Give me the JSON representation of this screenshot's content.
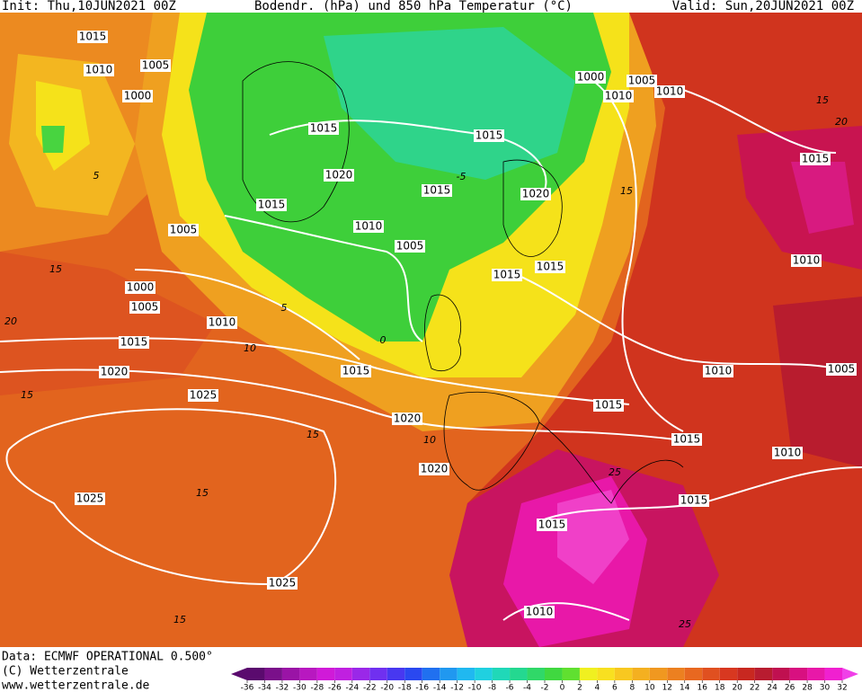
{
  "header": {
    "init": "Init: Thu,10JUN2021 00Z",
    "title": "Bodendr. (hPa) und 850 hPa Temperatur (°C)",
    "valid": "Valid: Sun,20JUN2021 00Z"
  },
  "footer": {
    "data": "Data: ECMWF OPERATIONAL 0.500°",
    "copyright": "(C) Wetterzentrale",
    "url": "www.wetterzentrale.de"
  },
  "map": {
    "isobar_labels": [
      1015,
      1010,
      1005,
      1000,
      1015,
      1015,
      1020,
      1015,
      1020,
      1015,
      1005,
      1010,
      1005,
      1015,
      1015,
      1000,
      1005,
      1010,
      1010,
      1015,
      1010,
      1000,
      1005,
      1010,
      1015,
      1020,
      1015,
      1010,
      1005,
      1025,
      1015,
      1020,
      1015,
      1010,
      1020,
      1025,
      1015,
      1015,
      1025,
      1010
    ],
    "isotherm_labels": [
      5,
      15,
      20,
      15,
      10,
      5,
      0,
      15,
      15,
      15,
      10,
      15,
      20,
      25,
      25,
      15,
      -5
    ]
  },
  "colorbar": {
    "ticks": [
      -36,
      -34,
      -32,
      -30,
      -28,
      -26,
      -24,
      -22,
      -20,
      -18,
      -16,
      -14,
      -12,
      -10,
      -8,
      -6,
      -4,
      -2,
      0,
      2,
      4,
      6,
      8,
      10,
      12,
      14,
      16,
      18,
      20,
      22,
      24,
      26,
      28,
      30,
      32
    ],
    "colors": [
      "#5a0a6e",
      "#7a108a",
      "#9a14a6",
      "#b818c0",
      "#d01ad8",
      "#c020e0",
      "#9a28e8",
      "#7030f0",
      "#4838f0",
      "#2a48f0",
      "#2070f0",
      "#2098f0",
      "#20b8f0",
      "#20d0e0",
      "#20d8b8",
      "#24d890",
      "#30d868",
      "#40d840",
      "#60e030",
      "#f0f020",
      "#f8e020",
      "#f8c820",
      "#f4b020",
      "#f09820",
      "#ec8020",
      "#e86820",
      "#e05020",
      "#d83820",
      "#c82820",
      "#b81c30",
      "#c01050",
      "#d81080",
      "#e818a8",
      "#f020d0",
      "#f040e8"
    ]
  }
}
